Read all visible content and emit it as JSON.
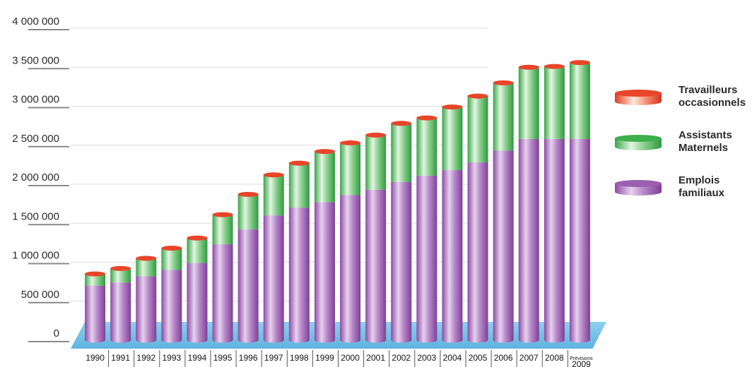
{
  "chart_data": {
    "type": "bar",
    "stacked": true,
    "categories": [
      "1990",
      "1991",
      "1992",
      "1993",
      "1994",
      "1995",
      "1996",
      "1997",
      "1998",
      "1999",
      "2000",
      "2001",
      "2002",
      "2003",
      "2004",
      "2005",
      "2006",
      "2007",
      "2008",
      "Prévisions 2009"
    ],
    "series": [
      {
        "name": "Emplois familiaux",
        "color": "#9b5fb0",
        "values": [
          700000,
          740000,
          820000,
          900000,
          990000,
          1230000,
          1420000,
          1600000,
          1700000,
          1770000,
          1860000,
          1930000,
          2030000,
          2110000,
          2180000,
          2280000,
          2430000,
          2580000,
          2580000,
          2580000
        ]
      },
      {
        "name": "Assistants Maternels",
        "color": "#4cb85a",
        "values": [
          150000,
          180000,
          230000,
          280000,
          320000,
          380000,
          450000,
          520000,
          570000,
          650000,
          670000,
          700000,
          750000,
          740000,
          810000,
          850000,
          870000,
          920000,
          930000,
          980000
        ]
      },
      {
        "name": "Travailleurs occasionnels",
        "color": "#e8452a",
        "values": [
          0,
          0,
          0,
          0,
          0,
          0,
          0,
          0,
          0,
          0,
          0,
          0,
          0,
          0,
          0,
          0,
          0,
          0,
          0,
          0
        ]
      }
    ],
    "ylim": [
      0,
      4000000
    ],
    "yticks": [
      {
        "value": 0,
        "label": "0"
      },
      {
        "value": 500000,
        "label": "500 000"
      },
      {
        "value": 1000000,
        "label": "1 000 000"
      },
      {
        "value": 1500000,
        "label": "1 500 000"
      },
      {
        "value": 2000000,
        "label": "2 000 000"
      },
      {
        "value": 2500000,
        "label": "2 500 000"
      },
      {
        "value": 3000000,
        "label": "3 000 000"
      },
      {
        "value": 3500000,
        "label": "3 500 000"
      },
      {
        "value": 4000000,
        "label": "4 000 000"
      }
    ],
    "grid": true,
    "legend_position": "right",
    "legend": [
      {
        "line1": "Travailleurs",
        "line2": "occasionnels",
        "color": "#e8452a"
      },
      {
        "line1": "Assistants",
        "line2": "Maternels",
        "color": "#4cb85a"
      },
      {
        "line1": "Emplois",
        "line2": "familiaux",
        "color": "#9b5fb0"
      }
    ]
  }
}
